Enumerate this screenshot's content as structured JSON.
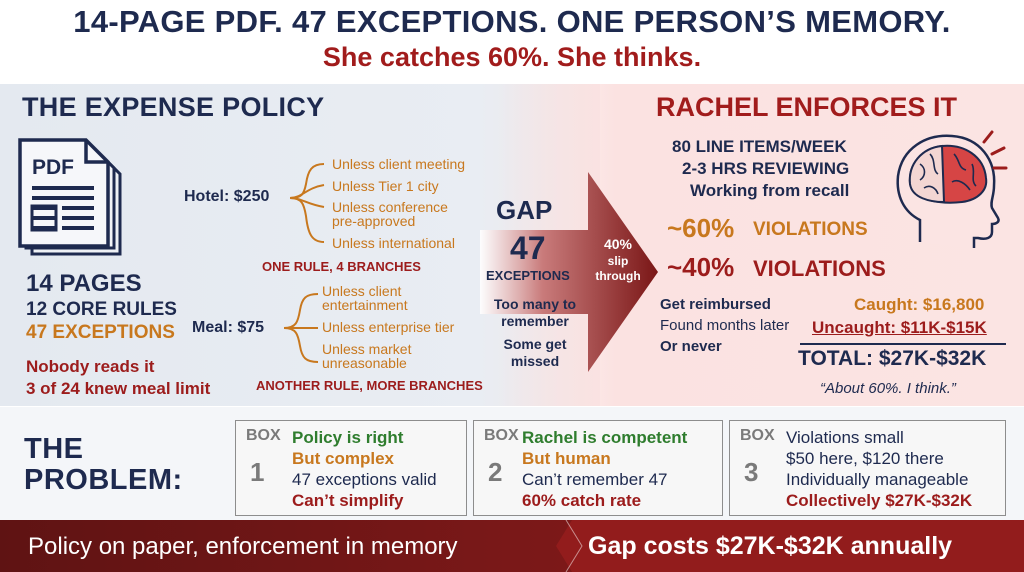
{
  "header": {
    "title": "14-PAGE PDF. 47 EXCEPTIONS. ONE PERSON’S MEMORY.",
    "subtitle": "She catches 60%. She thinks."
  },
  "policy": {
    "title": "THE EXPENSE POLICY",
    "pdf_label": "PDF",
    "pages": "14 PAGES",
    "core_rules": "12 CORE RULES",
    "exceptions": "47 EXCEPTIONS",
    "nobody_reads": "Nobody reads it",
    "knew_limit": "3 of 24 knew meal limit",
    "hotel": {
      "label": "Hotel: $250",
      "branches": [
        "Unless client meeting",
        "Unless Tier 1 city",
        "Unless conference",
        "pre-approved",
        "Unless international"
      ],
      "caption": "ONE RULE, 4 BRANCHES"
    },
    "meal": {
      "label": "Meal: $75",
      "branches": [
        "Unless client",
        "entertainment",
        "Unless enterprise tier",
        "Unless market",
        "unreasonable"
      ],
      "caption": "ANOTHER RULE, MORE BRANCHES"
    }
  },
  "gap": {
    "label": "GAP",
    "number": "47",
    "unit": "EXCEPTIONS",
    "note1": [
      "Too many to",
      "remember"
    ],
    "note2": [
      "Some get",
      "missed"
    ],
    "slip_pct": "40%",
    "slip_text": [
      "slip",
      "through"
    ]
  },
  "rachel": {
    "title": "RACHEL ENFORCES IT",
    "line_items": "80 LINE ITEMS/WEEK",
    "hours": "2-3 HRS REVIEWING",
    "recall": "Working from recall",
    "caught_pct": "~60%",
    "caught_label": "VIOLATIONS",
    "missed_pct": "~40%",
    "missed_label": "VIOLATIONS",
    "outcomes": [
      "Get reimbursed",
      "Found months later",
      "Or never"
    ],
    "caught_amount": "Caught: $16,800",
    "uncaught_amount": "Uncaught: $11K-$15K",
    "total": "TOTAL: $27K-$32K",
    "quote": "“About 60%. I think.”"
  },
  "problem": {
    "title_line1": "THE",
    "title_line2": "PROBLEM:",
    "boxes": [
      {
        "tag": "BOX",
        "num": "1",
        "lines": [
          "Policy is right",
          "But complex",
          "47 exceptions valid",
          "Can’t simplify"
        ]
      },
      {
        "tag": "BOX",
        "num": "2",
        "lines": [
          "Rachel is competent",
          "But human",
          "Can’t remember 47",
          "60% catch rate"
        ]
      },
      {
        "tag": "BOX",
        "num": "3",
        "lines": [
          "Violations small",
          "$50 here, $120 there",
          "Individually manageable",
          "Collectively $27K-$32K"
        ]
      }
    ]
  },
  "footer": {
    "left": "Policy on paper, enforcement in memory",
    "right": "Gap costs $27K-$32K annually"
  },
  "colors": {
    "navy": "#1e2a4f",
    "red": "#9c1c1c",
    "orange": "#c8781e",
    "green": "#2f7d2e",
    "footer_bg": "#7a1818"
  }
}
